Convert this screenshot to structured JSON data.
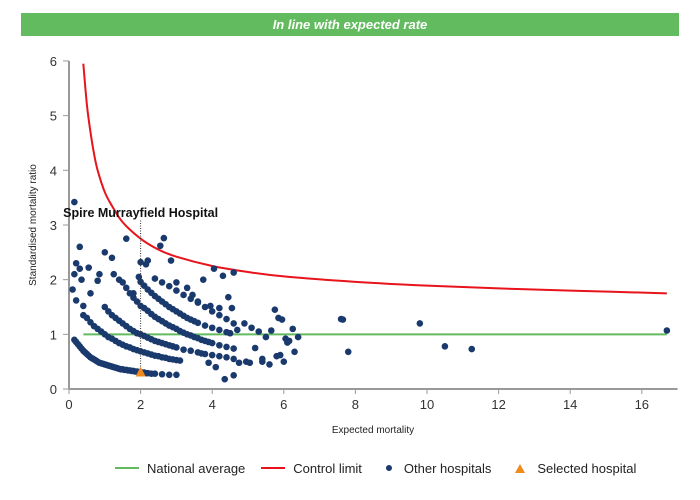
{
  "banner": {
    "text": "In line with expected rate",
    "color": "#63bb5f"
  },
  "chart_data": {
    "type": "scatter",
    "title": "",
    "xlabel": "Expected mortality",
    "ylabel": "Standardised mortality ratio",
    "xlim": [
      0,
      17
    ],
    "ylim": [
      0,
      6
    ],
    "xticks": [
      0,
      2,
      4,
      6,
      8,
      10,
      12,
      14,
      16
    ],
    "yticks": [
      0,
      1,
      2,
      3,
      4,
      5,
      6
    ],
    "grid": false,
    "legend_position": "bottom",
    "colors": {
      "national_average": "#63bb5f",
      "control_limit": "#e8131b",
      "other_hospitals": "#1a3a6e",
      "selected_hospital": "#f08a1c",
      "axis": "#999999"
    },
    "national_average": {
      "name": "National average",
      "y": 1,
      "x_range": [
        0.4,
        16.7
      ]
    },
    "control_limit": {
      "name": "Control limit",
      "x": [
        0.4,
        0.5,
        0.6,
        0.7,
        0.8,
        1.0,
        1.2,
        1.5,
        2.0,
        2.5,
        3.0,
        4.0,
        5.0,
        6.0,
        8.0,
        10.0,
        12.0,
        14.0,
        16.7
      ],
      "y": [
        5.95,
        5.2,
        4.7,
        4.3,
        4.0,
        3.6,
        3.35,
        3.05,
        2.75,
        2.55,
        2.42,
        2.25,
        2.14,
        2.06,
        1.96,
        1.89,
        1.84,
        1.8,
        1.75
      ]
    },
    "other_hospitals": {
      "name": "Other hospitals",
      "x": [
        0.15,
        0.2,
        0.25,
        0.3,
        0.35,
        0.4,
        0.45,
        0.5,
        0.55,
        0.6,
        0.65,
        0.7,
        0.75,
        0.8,
        0.85,
        0.9,
        0.95,
        1.0,
        1.05,
        1.1,
        1.15,
        1.2,
        1.25,
        1.3,
        1.35,
        1.4,
        1.45,
        1.5,
        1.55,
        1.6,
        1.65,
        1.7,
        1.75,
        1.8,
        1.85,
        1.9,
        1.95,
        2.05,
        2.1,
        2.15,
        2.2,
        2.3,
        2.4,
        2.6,
        2.8,
        3.0,
        0.1,
        0.4,
        0.5,
        0.6,
        0.7,
        0.8,
        0.9,
        1.0,
        1.1,
        1.2,
        1.3,
        1.4,
        1.5,
        1.6,
        1.7,
        1.8,
        1.9,
        2.0,
        2.1,
        2.2,
        2.3,
        2.4,
        2.5,
        2.6,
        2.7,
        2.8,
        2.9,
        3.0,
        3.1,
        0.3,
        1.0,
        1.1,
        1.2,
        1.3,
        1.4,
        1.5,
        1.6,
        1.7,
        1.8,
        1.9,
        2.0,
        2.1,
        2.2,
        2.3,
        2.4,
        2.5,
        2.6,
        2.7,
        2.8,
        2.9,
        3.0,
        3.2,
        3.4,
        3.6,
        3.8,
        4.0,
        4.2,
        4.4,
        4.6,
        0.2,
        1.5,
        1.6,
        1.7,
        1.8,
        1.9,
        2.0,
        2.1,
        2.2,
        2.3,
        2.4,
        2.5,
        2.6,
        2.7,
        2.8,
        2.9,
        3.0,
        3.1,
        3.2,
        3.3,
        3.4,
        3.5,
        3.6,
        3.7,
        3.8,
        3.9,
        4.0,
        4.2,
        4.4,
        4.6,
        0.15,
        2.0,
        2.1,
        2.2,
        2.3,
        2.4,
        2.5,
        2.6,
        2.7,
        2.8,
        2.9,
        3.0,
        3.1,
        3.2,
        3.3,
        3.4,
        3.5,
        3.6,
        3.8,
        4.0,
        4.2,
        4.4,
        4.5,
        0.3,
        2.4,
        2.6,
        2.8,
        3.0,
        3.2,
        3.4,
        3.6,
        3.8,
        4.0,
        4.2,
        4.4,
        4.6,
        0.15,
        0.35,
        0.6,
        0.85,
        1.0,
        1.25,
        1.4,
        1.6,
        1.8,
        1.95,
        2.15,
        2.55,
        2.65,
        2.85,
        3.0,
        3.3,
        3.6,
        3.75,
        4.05,
        4.3,
        4.45,
        4.6,
        0.2,
        0.4,
        0.55,
        0.8,
        1.2,
        2.2,
        2.0,
        3.45,
        4.2,
        3.95,
        4.55,
        4.7,
        5.1,
        5.3,
        5.5,
        5.65,
        5.75,
        5.85,
        5.95,
        6.05,
        6.15,
        6.25,
        6.4,
        5.2,
        5.4,
        5.6,
        5.8,
        6.0,
        4.9,
        3.7,
        3.9,
        4.1,
        4.35,
        7.6,
        7.65,
        7.8,
        9.8,
        10.5,
        11.25,
        16.7,
        5.4,
        4.6,
        4.95,
        5.05,
        4.75,
        6.3,
        6.1,
        5.9
      ],
      "y": [
        0.9,
        0.86,
        0.82,
        0.78,
        0.74,
        0.7,
        0.67,
        0.64,
        0.61,
        0.58,
        0.56,
        0.54,
        0.52,
        0.5,
        0.48,
        0.47,
        0.46,
        0.45,
        0.44,
        0.43,
        0.42,
        0.41,
        0.4,
        0.39,
        0.38,
        0.37,
        0.36,
        0.36,
        0.35,
        0.35,
        0.34,
        0.34,
        0.33,
        0.33,
        0.32,
        0.32,
        0.31,
        0.3,
        0.3,
        0.29,
        0.29,
        0.28,
        0.28,
        0.27,
        0.26,
        0.26,
        1.82,
        1.35,
        1.3,
        1.22,
        1.15,
        1.1,
        1.05,
        1.0,
        0.95,
        0.92,
        0.88,
        0.84,
        0.81,
        0.78,
        0.76,
        0.73,
        0.71,
        0.69,
        0.67,
        0.65,
        0.63,
        0.61,
        0.6,
        0.58,
        0.57,
        0.55,
        0.54,
        0.53,
        0.52,
        2.6,
        1.5,
        1.42,
        1.35,
        1.3,
        1.25,
        1.2,
        1.15,
        1.1,
        1.06,
        1.02,
        1.0,
        0.97,
        0.94,
        0.91,
        0.88,
        0.86,
        0.84,
        0.82,
        0.8,
        0.78,
        0.76,
        0.72,
        0.7,
        0.67,
        0.64,
        0.62,
        0.6,
        0.58,
        0.55,
        2.3,
        1.95,
        1.85,
        1.75,
        1.67,
        1.6,
        1.52,
        1.48,
        1.43,
        1.37,
        1.32,
        1.28,
        1.24,
        1.2,
        1.16,
        1.13,
        1.1,
        1.06,
        1.03,
        1.0,
        0.98,
        0.95,
        0.93,
        0.9,
        0.88,
        0.86,
        0.84,
        0.8,
        0.77,
        0.74,
        3.42,
        1.96,
        1.89,
        1.82,
        1.76,
        1.7,
        1.65,
        1.6,
        1.55,
        1.5,
        1.46,
        1.42,
        1.38,
        1.34,
        1.3,
        1.27,
        1.24,
        1.21,
        1.16,
        1.12,
        1.08,
        1.04,
        1.02,
        2.2,
        2.02,
        1.95,
        1.88,
        1.8,
        1.72,
        1.65,
        1.58,
        1.5,
        1.42,
        1.35,
        1.28,
        1.2,
        2.1,
        2.0,
        1.75,
        2.1,
        2.5,
        2.1,
        2.0,
        2.75,
        1.75,
        2.05,
        2.28,
        2.62,
        2.76,
        2.35,
        1.95,
        1.85,
        1.6,
        2.0,
        2.2,
        2.07,
        1.68,
        2.13,
        1.62,
        1.52,
        2.22,
        1.98,
        2.4,
        2.35,
        2.32,
        1.72,
        1.48,
        1.52,
        1.48,
        1.08,
        1.12,
        1.05,
        0.95,
        1.07,
        1.45,
        1.3,
        1.27,
        0.92,
        0.88,
        1.1,
        0.95,
        0.75,
        0.55,
        0.45,
        0.6,
        0.5,
        1.2,
        0.65,
        0.48,
        0.4,
        0.18,
        1.28,
        1.27,
        0.68,
        1.2,
        0.78,
        0.73,
        1.07,
        0.5,
        0.25,
        0.5,
        0.48,
        0.48,
        0.68,
        0.85,
        0.62
      ]
    },
    "selected_hospital": {
      "name": "Selected hospital",
      "label": "Spire Murrayfield Hospital",
      "x": 2.0,
      "y": 0.32
    }
  },
  "legend": {
    "items": [
      {
        "label": "National average"
      },
      {
        "label": "Control limit"
      },
      {
        "label": "Other hospitals"
      },
      {
        "label": "Selected hospital"
      }
    ]
  }
}
